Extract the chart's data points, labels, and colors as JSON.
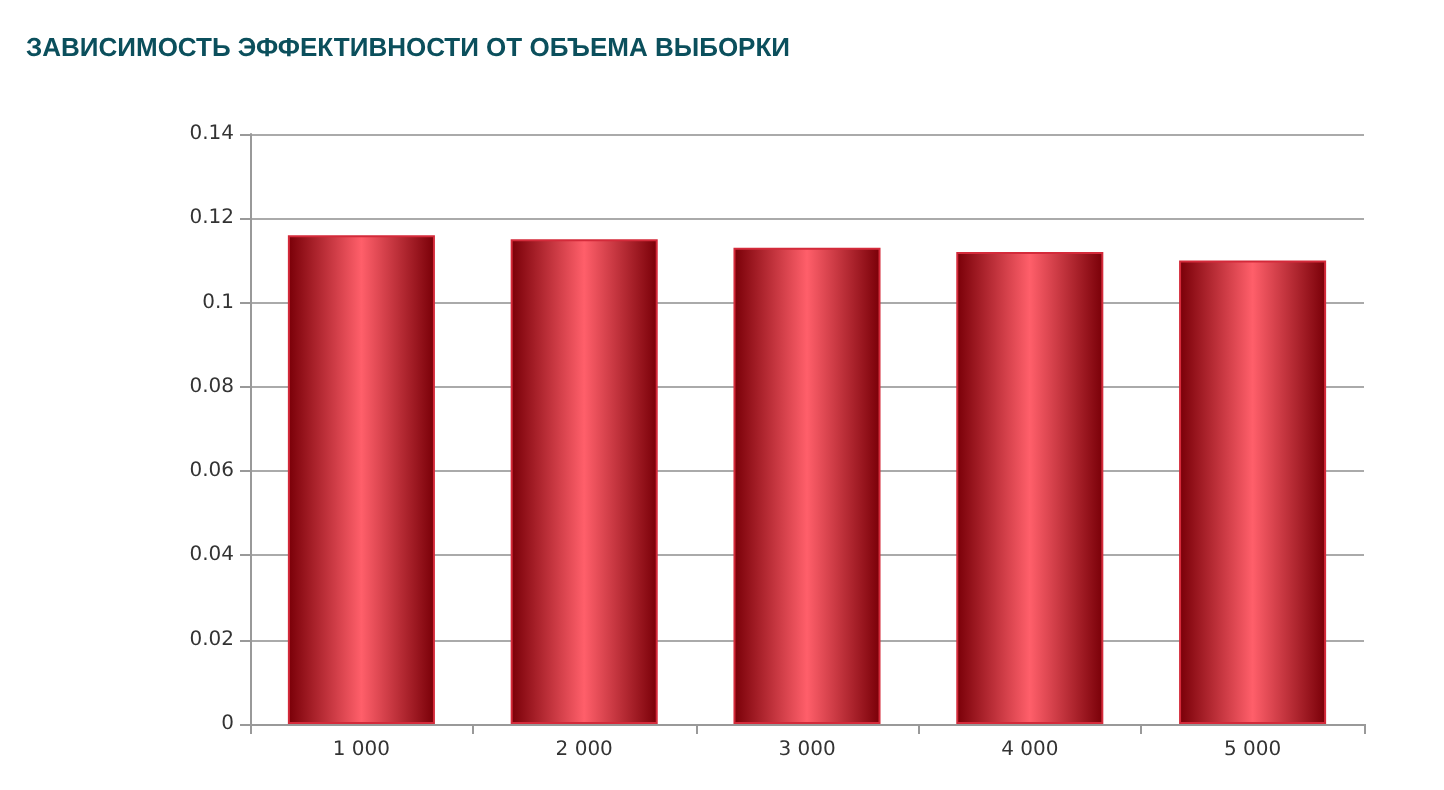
{
  "chart_data": {
    "type": "bar",
    "title": "ЗАВИСИМОСТЬ ЭФФЕКТИВНОСТИ ОТ ОБЪЕМА ВЫБОРКИ",
    "categories": [
      "1 000",
      "2 000",
      "3 000",
      "4 000",
      "5 000"
    ],
    "values": [
      0.116,
      0.115,
      0.113,
      0.112,
      0.11
    ],
    "color": "#d42a3a",
    "ylim": [
      0,
      0.14
    ],
    "yticks": [
      0,
      0.02,
      0.04,
      0.06,
      0.08,
      0.1,
      0.12,
      0.14
    ],
    "grid": "y"
  }
}
